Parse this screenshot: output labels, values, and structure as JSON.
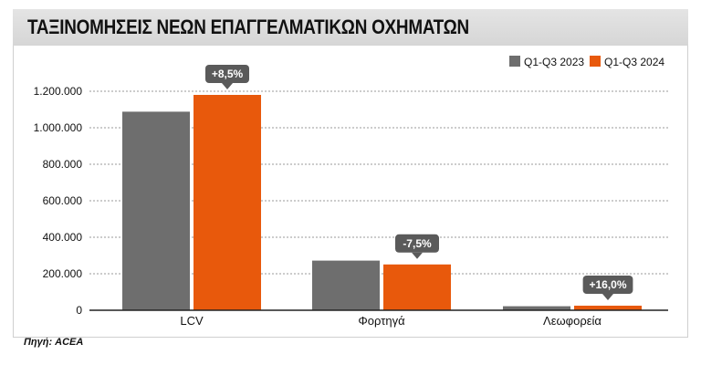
{
  "title": "ΤΑΞΙΝΟΜΗΣΕΙΣ ΝΕΩΝ ΕΠΑΓΓΕΛΜΑΤΙΚΩΝ ΟΧΗΜΑΤΩΝ",
  "source": "Πηγή: ACEA",
  "colors": {
    "series_2023": "#6e6e6e",
    "series_2024": "#e8590c",
    "callout": "#5a5a5a"
  },
  "chart_data": {
    "type": "bar",
    "categories": [
      "LCV",
      "Φορτηγά",
      "Λεωφορεία"
    ],
    "series": [
      {
        "name": "Q1-Q3 2023",
        "values": [
          1088000,
          272000,
          22000
        ]
      },
      {
        "name": "Q1-Q3 2024",
        "values": [
          1180000,
          251000,
          25000
        ]
      }
    ],
    "annotations": [
      "+8,5%",
      "-7,5%",
      "+16,0%"
    ],
    "yticks": [
      0,
      200000,
      400000,
      600000,
      800000,
      1000000,
      1200000
    ],
    "ytick_labels": [
      "0",
      "200.000",
      "400.000",
      "600.000",
      "800.000",
      "1.000.000",
      "1.200.000"
    ],
    "ylim": [
      0,
      1200000
    ],
    "grid": true,
    "legend": "top-right"
  }
}
